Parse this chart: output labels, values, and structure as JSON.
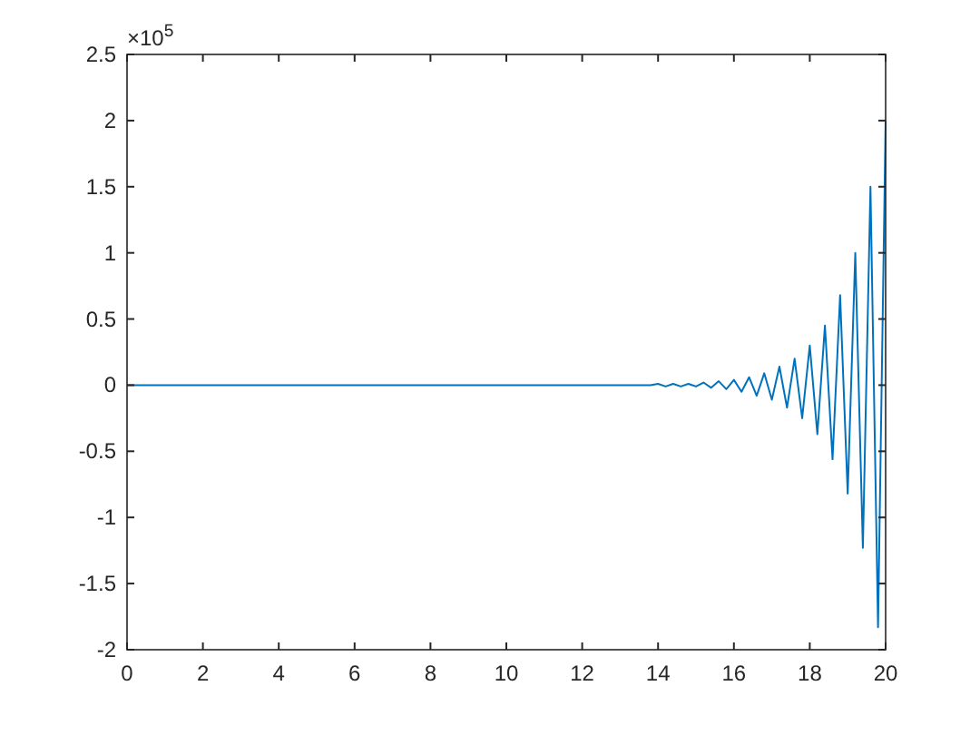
{
  "chart_data": {
    "type": "line",
    "x": [
      0,
      13.8,
      14,
      14.2,
      14.4,
      14.6,
      14.8,
      15,
      15.2,
      15.4,
      15.6,
      15.8,
      16,
      16.2,
      16.4,
      16.6,
      16.8,
      17,
      17.2,
      17.4,
      17.6,
      17.8,
      18,
      18.2,
      18.4,
      18.6,
      18.8,
      19,
      19.2,
      19.4,
      19.6,
      19.8,
      20
    ],
    "series": [
      {
        "color": "#0072bd",
        "values": [
          0,
          0,
          0.01,
          -0.01,
          0.01,
          -0.01,
          0.01,
          -0.01,
          0.02,
          -0.02,
          0.03,
          -0.03,
          0.04,
          -0.05,
          0.06,
          -0.08,
          0.09,
          -0.11,
          0.14,
          -0.17,
          0.2,
          -0.25,
          0.3,
          -0.37,
          0.45,
          -0.56,
          0.68,
          -0.82,
          1,
          -1.23,
          1.5,
          -1.83,
          2
        ]
      }
    ],
    "xlim": [
      0,
      20
    ],
    "xticks": [
      0,
      2,
      4,
      6,
      8,
      10,
      12,
      14,
      16,
      18,
      20
    ],
    "ylim": [
      -2,
      2.5
    ],
    "yticks": [
      -2,
      -1.5,
      -1,
      -0.5,
      0,
      0.5,
      1,
      1.5,
      2,
      2.5
    ],
    "annotations": [
      "×10$^{5}$"
    ],
    "grid": false
  }
}
